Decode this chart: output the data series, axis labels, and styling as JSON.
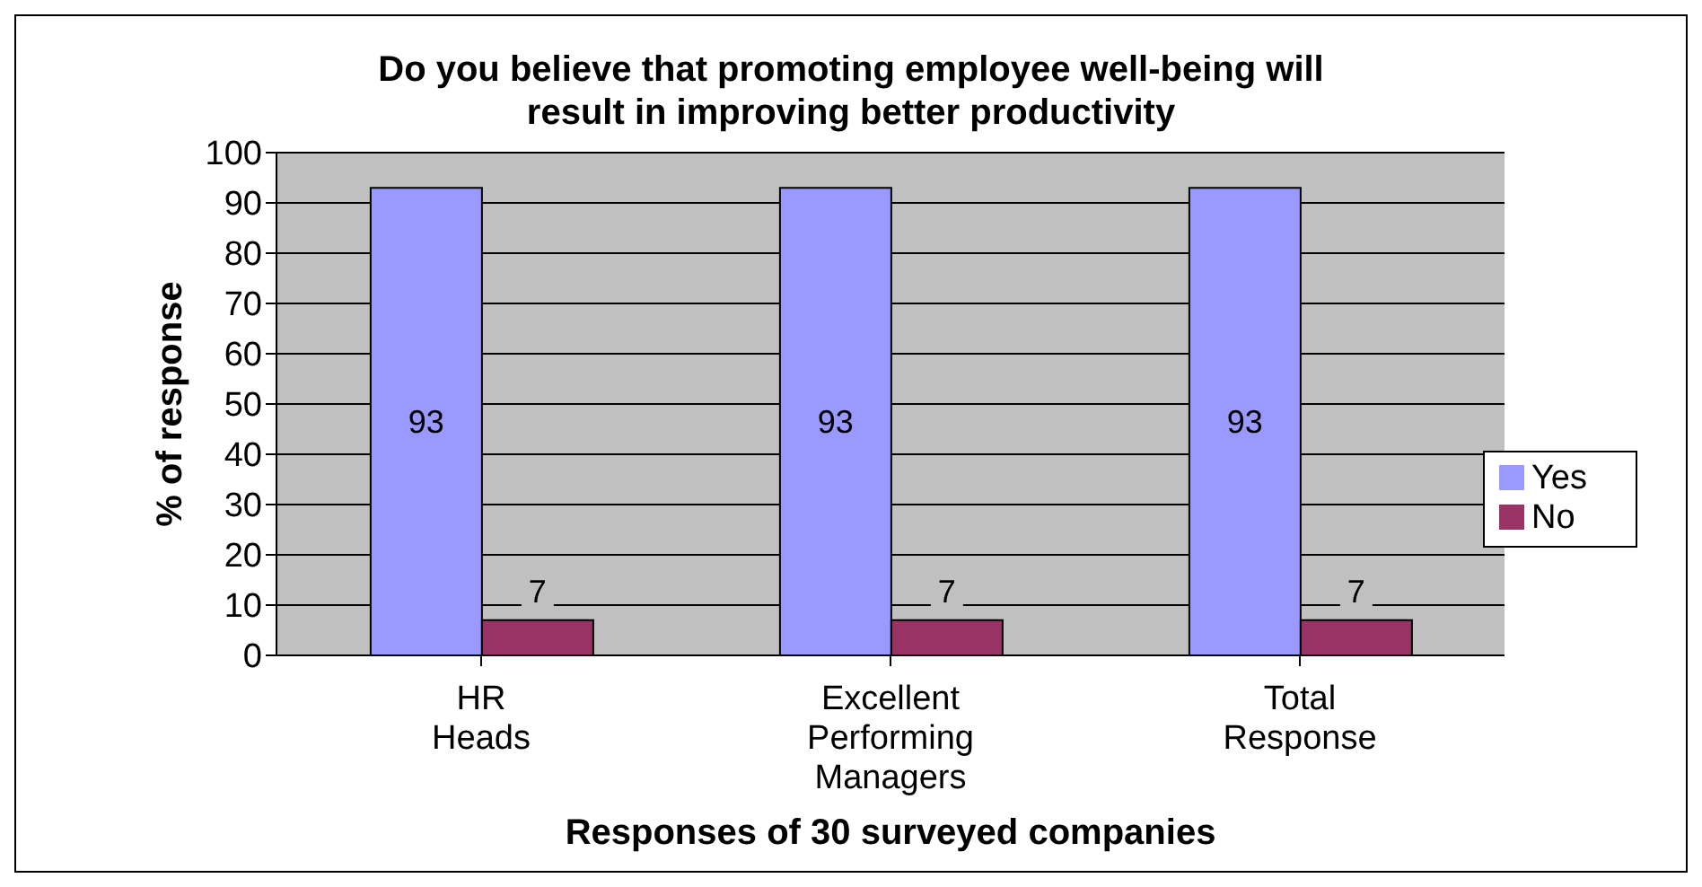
{
  "chart_data": {
    "type": "bar",
    "title": "Do you believe that promoting employee well-being will result in improving better productivity",
    "xlabel": "Responses of 30 surveyed companies",
    "ylabel": "% of response",
    "categories": [
      "HR Heads",
      "Excellent Performing Managers",
      "Total Response"
    ],
    "series": [
      {
        "name": "Yes",
        "color": "#9999ff",
        "values": [
          93,
          93,
          93
        ]
      },
      {
        "name": "No",
        "color": "#993366",
        "values": [
          7,
          7,
          7
        ]
      }
    ],
    "ylim": [
      0,
      100
    ],
    "yticks": [
      0,
      10,
      20,
      30,
      40,
      50,
      60,
      70,
      80,
      90,
      100
    ],
    "grid": "y",
    "legend": "right",
    "data_labels": true
  }
}
